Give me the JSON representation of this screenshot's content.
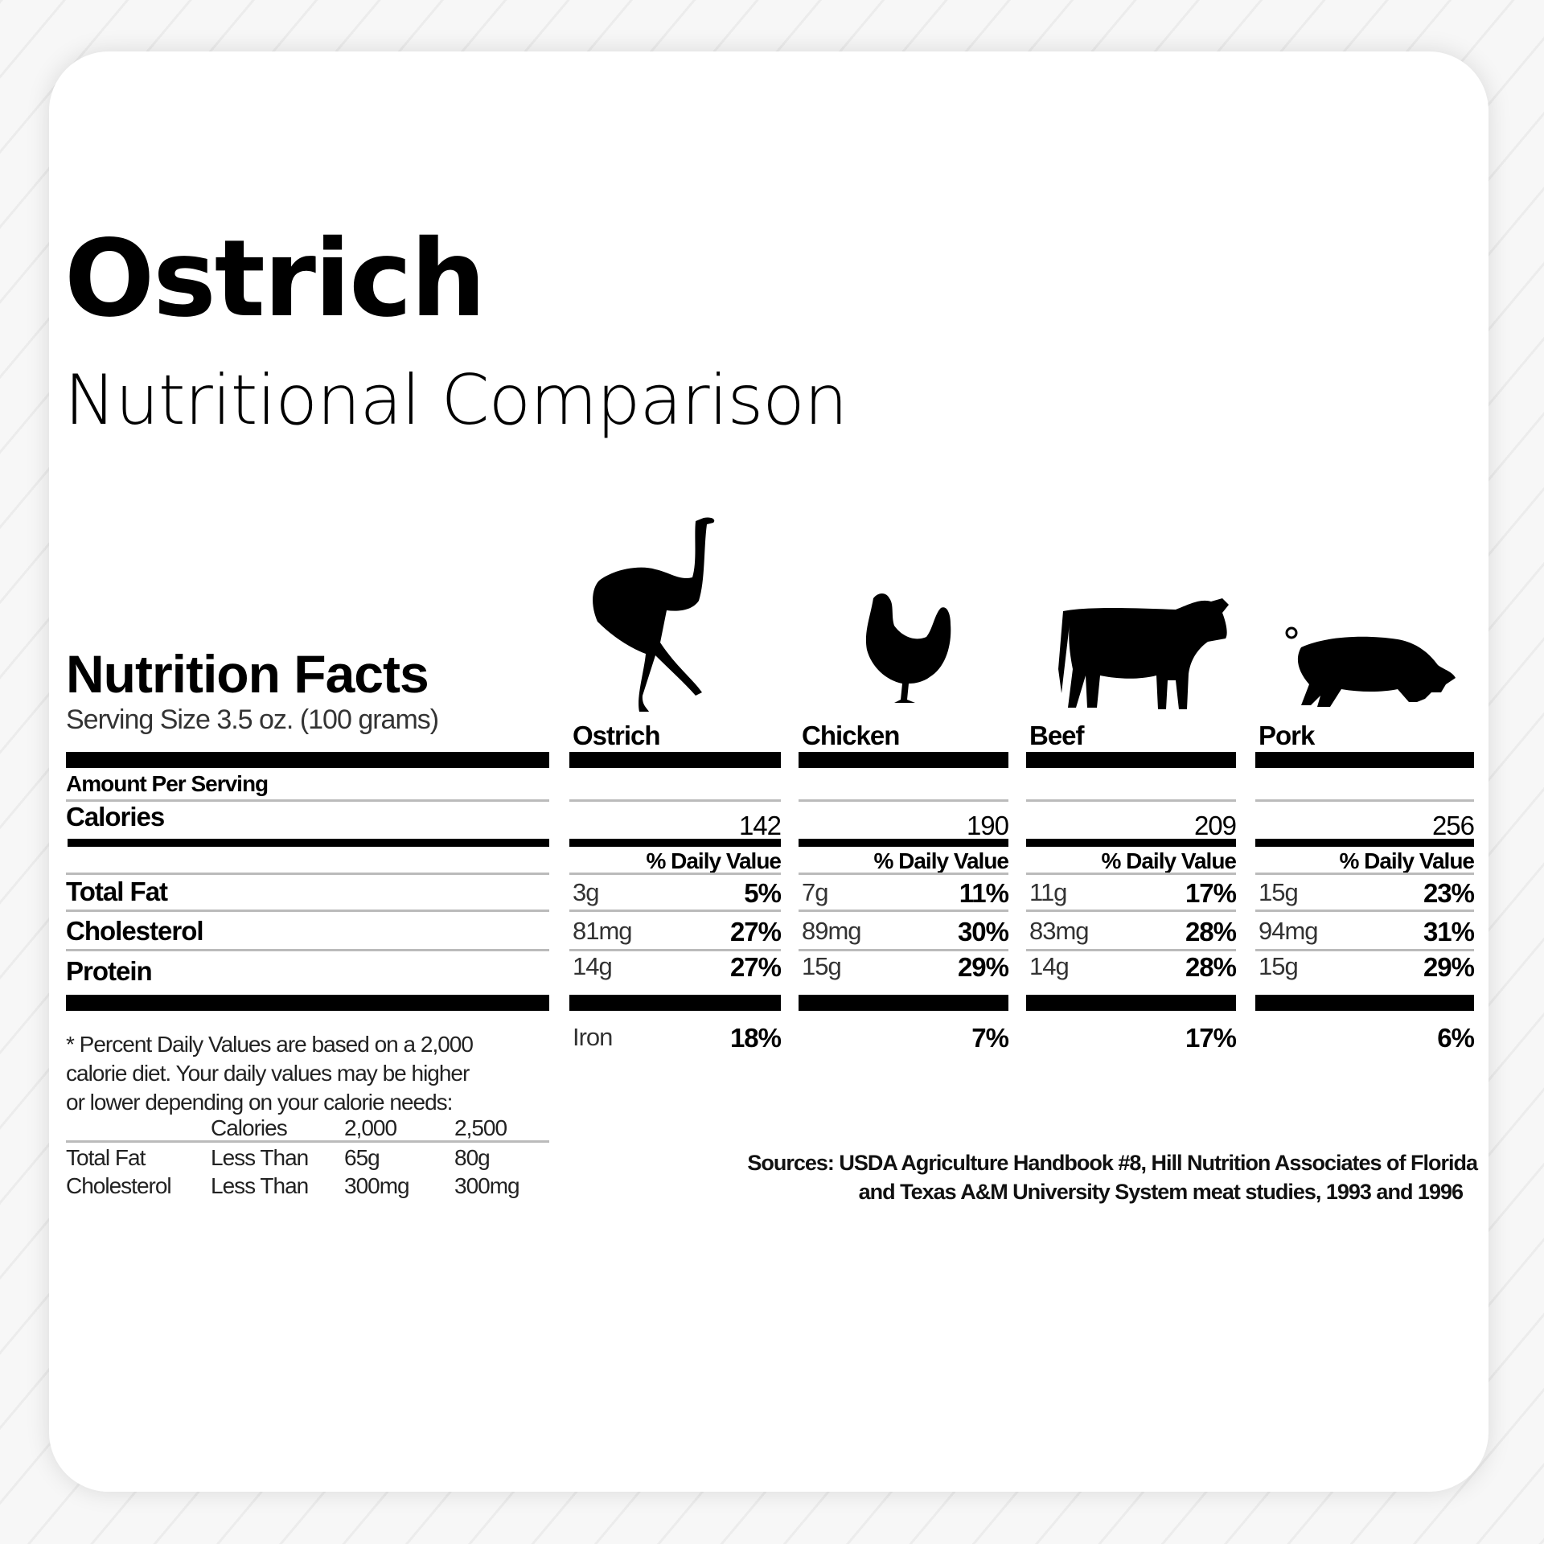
{
  "title": "Ostrich",
  "subtitle": "Nutritional Comparison",
  "label": {
    "heading": "Nutrition Facts",
    "serving_size": "Serving Size 3.5 oz. (100 grams)",
    "amount_per_serving": "Amount Per Serving",
    "calories": "Calories",
    "rows": [
      "Total Fat",
      "Cholesterol",
      "Protein"
    ],
    "daily_value_header": "% Daily Value",
    "iron": "Iron"
  },
  "columns": [
    {
      "name": "Ostrich",
      "icon": "ostrich-icon",
      "calories": "142",
      "total_fat": "3g",
      "total_fat_dv": "5%",
      "cholesterol": "81mg",
      "cholesterol_dv": "27%",
      "protein": "14g",
      "protein_dv": "27%",
      "iron_dv": "18%"
    },
    {
      "name": "Chicken",
      "icon": "chicken-icon",
      "calories": "190",
      "total_fat": "7g",
      "total_fat_dv": "11%",
      "cholesterol": "89mg",
      "cholesterol_dv": "30%",
      "protein": "15g",
      "protein_dv": "29%",
      "iron_dv": "7%"
    },
    {
      "name": "Beef",
      "icon": "cow-icon",
      "calories": "209",
      "total_fat": "11g",
      "total_fat_dv": "17%",
      "cholesterol": "83mg",
      "cholesterol_dv": "28%",
      "protein": "14g",
      "protein_dv": "28%",
      "iron_dv": "17%"
    },
    {
      "name": "Pork",
      "icon": "pig-icon",
      "calories": "256",
      "total_fat": "15g",
      "total_fat_dv": "23%",
      "cholesterol": "94mg",
      "cholesterol_dv": "31%",
      "protein": "15g",
      "protein_dv": "29%",
      "iron_dv": "6%"
    }
  ],
  "footnote": {
    "lines": [
      "* Percent Daily Values are based on a 2,000",
      "calorie diet. Your daily values may be higher",
      "or lower depending on your calorie needs:"
    ],
    "table_header": [
      "",
      "Calories",
      "2,000",
      "2,500"
    ],
    "table_rows": [
      [
        "Total Fat",
        "Less Than",
        "65g",
        "80g"
      ],
      [
        "Cholesterol",
        "Less Than",
        "300mg",
        "300mg"
      ]
    ]
  },
  "sources": [
    "Sources: USDA Agriculture Handbook #8, Hill Nutrition Associates of Florida",
    "and Texas A&M University System meat studies, 1993 and 1996"
  ]
}
